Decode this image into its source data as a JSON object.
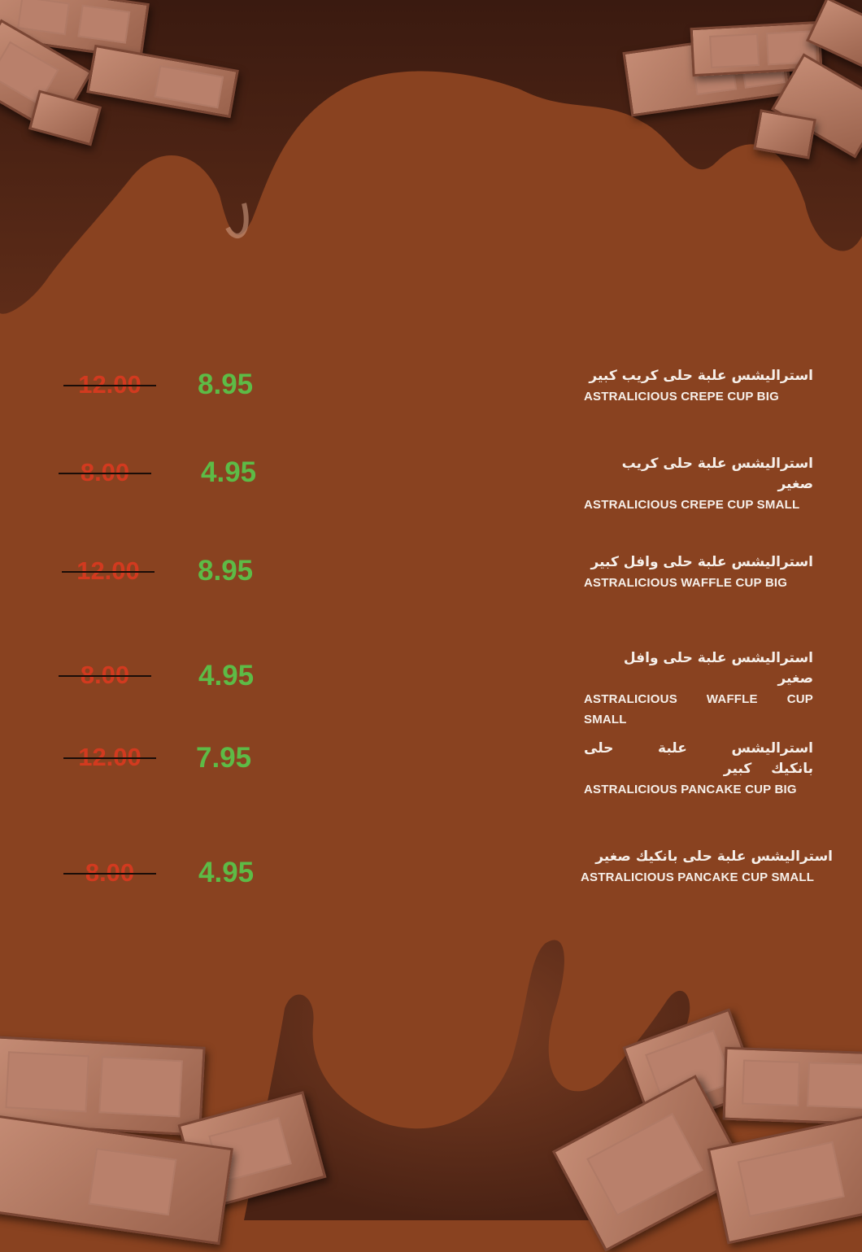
{
  "colors": {
    "background": "#894220",
    "price_new": "#5dbb46",
    "price_old": "#d23a1f"
  },
  "items": [
    {
      "ar": "استراليشس علبة حلى كريب كبير",
      "en": "ASTRALICIOUS CREPE CUP BIG",
      "price": "8.95",
      "old_price": "12.00"
    },
    {
      "ar": "استراليشس علبة حلى كريب صغير",
      "en": "ASTRALICIOUS CREPE CUP SMALL",
      "price": "4.95",
      "old_price": "8.00"
    },
    {
      "ar": "استراليشس علبة حلى وافل كبير",
      "en": "ASTRALICIOUS WAFFLE CUP BIG",
      "price": "8.95",
      "old_price": "12.00"
    },
    {
      "ar": "استراليشس علبة حلى وافل صغير",
      "en": "ASTRALICIOUS WAFFLE CUP SMALL",
      "price": "4.95",
      "old_price": "8.00"
    },
    {
      "ar": "استراليشس علبة حلى بانكيك كبير",
      "en": "ASTRALICIOUS PANCAKE CUP BIG",
      "price": "7.95",
      "old_price": "12.00"
    },
    {
      "ar": "استراليشس علبة حلى بانكيك صغير",
      "en": "ASTRALICIOUS PANCAKE CUP SMALL",
      "price": "4.95",
      "old_price": "8.00"
    }
  ]
}
